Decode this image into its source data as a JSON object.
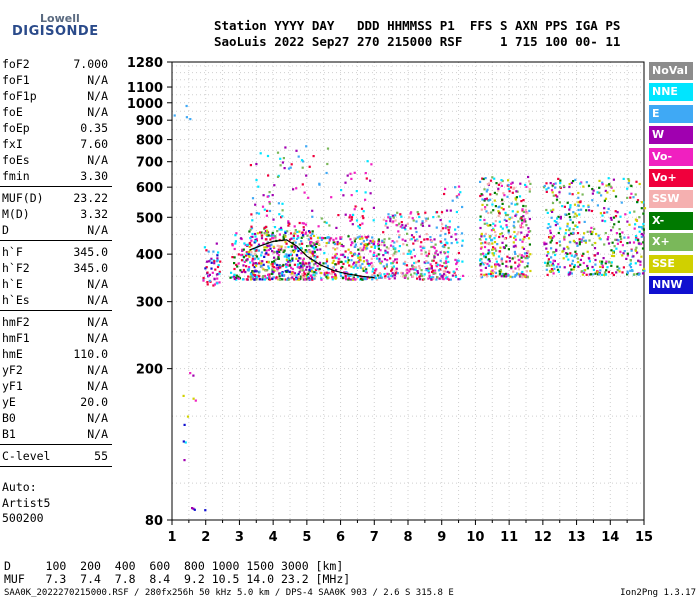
{
  "logo": {
    "line1": "Lowell",
    "line2": "DIGISONDE"
  },
  "header": {
    "line1": "Station YYYY DAY   DDD HHMMSS P1  FFS S AXN PPS IGA PS",
    "line2": "SaoLuis 2022 Sep27 270 215000 RSF     1 715 100 00- 11"
  },
  "params": [
    {
      "name": "foF2",
      "value": "7.000"
    },
    {
      "name": "foF1",
      "value": "N/A"
    },
    {
      "name": "foF1p",
      "value": "N/A"
    },
    {
      "name": "foE",
      "value": "N/A"
    },
    {
      "name": "foEp",
      "value": "0.35"
    },
    {
      "name": "fxI",
      "value": "7.60"
    },
    {
      "name": "foEs",
      "value": "N/A"
    },
    {
      "name": "fmin",
      "value": "3.30"
    },
    {
      "sep": true
    },
    {
      "name": "MUF(D)",
      "value": "23.22"
    },
    {
      "name": "M(D)",
      "value": "3.32"
    },
    {
      "name": "D",
      "value": "N/A"
    },
    {
      "sep": true
    },
    {
      "name": "h`F",
      "value": "345.0"
    },
    {
      "name": "h`F2",
      "value": "345.0"
    },
    {
      "name": "h`E",
      "value": "N/A"
    },
    {
      "name": "h`Es",
      "value": "N/A"
    },
    {
      "sep": true
    },
    {
      "name": "hmF2",
      "value": "N/A"
    },
    {
      "name": "hmF1",
      "value": "N/A"
    },
    {
      "name": "hmE",
      "value": "110.0"
    },
    {
      "name": "yF2",
      "value": "N/A"
    },
    {
      "name": "yF1",
      "value": "N/A"
    },
    {
      "name": "yE",
      "value": "20.0"
    },
    {
      "name": "B0",
      "value": "N/A"
    },
    {
      "name": "B1",
      "value": "N/A"
    },
    {
      "sep": true
    },
    {
      "name": "C-level",
      "value": "55"
    },
    {
      "sep": true
    }
  ],
  "autoscaling": [
    "Auto:",
    "Artist5",
    "500200"
  ],
  "legend": [
    {
      "label": "NoVal",
      "color": "#8c8c8c"
    },
    {
      "label": "NNE",
      "color": "#00e5ff"
    },
    {
      "label": "E",
      "color": "#3fa9f5"
    },
    {
      "label": "W",
      "color": "#a000b0"
    },
    {
      "label": "Vo-",
      "color": "#f020c0"
    },
    {
      "label": "Vo+",
      "color": "#f0003c"
    },
    {
      "label": "SSW",
      "color": "#f5b0b0"
    },
    {
      "label": "X-",
      "color": "#007a00"
    },
    {
      "label": "X+",
      "color": "#7ab85a"
    },
    {
      "label": "SSE",
      "color": "#d0d000"
    },
    {
      "label": "NNW",
      "color": "#1010d0"
    }
  ],
  "muf_table": {
    "line1": "D     100  200  400  600  800 1000 1500 3000 [km]",
    "line2": "MUF   7.3  7.4  7.8  8.4  9.2 10.5 14.0 23.2 [MHz]"
  },
  "footer": {
    "left": "SAA0K_2022270215000.RSF / 280fx256h 50 kHz 5.0 km / DPS-4 SAA0K 903 / 2.6 S 315.8 E",
    "right": "Ion2Png 1.3.17"
  },
  "chart_data": {
    "type": "scatter",
    "title": "",
    "xlabel": "",
    "ylabel": "",
    "xlim": [
      1,
      15
    ],
    "ylim": [
      80,
      1280
    ],
    "xticks": [
      "1",
      "2",
      "3",
      "4",
      "5",
      "6",
      "7",
      "8",
      "9",
      "10",
      "11",
      "12",
      "13",
      "14",
      "15"
    ],
    "yticks": [
      "80",
      "200",
      "300",
      "400",
      "500",
      "600",
      "700",
      "800",
      "900",
      "1000",
      "1100",
      "1280"
    ],
    "ytick_values": [
      80,
      200,
      300,
      400,
      500,
      600,
      700,
      800,
      900,
      1000,
      1100,
      1280
    ],
    "y_scale": "logarithmic",
    "grid": true,
    "trace": {
      "x": [
        3.3,
        3.6,
        4.0,
        4.4,
        4.7,
        5.0,
        5.4,
        5.8,
        6.2,
        6.6,
        7.0
      ],
      "y": [
        410,
        420,
        432,
        436,
        420,
        395,
        375,
        362,
        355,
        350,
        347
      ]
    },
    "clusters": [
      {
        "x": [
          1.9,
          2.4
        ],
        "y": [
          330,
          430
        ],
        "n": 50,
        "colors": [
          1,
          2,
          3,
          4,
          5,
          10
        ]
      },
      {
        "x": [
          2.7,
          3.2
        ],
        "y": [
          345,
          460
        ],
        "n": 60,
        "colors": [
          3,
          4,
          5,
          1,
          7
        ]
      },
      {
        "x": [
          3.2,
          5.2
        ],
        "y": [
          345,
          470
        ],
        "n": 500,
        "colors": [
          4,
          5,
          3,
          1,
          2,
          7,
          6,
          8,
          9,
          10
        ]
      },
      {
        "x": [
          5.0,
          7.2
        ],
        "y": [
          345,
          450
        ],
        "n": 350,
        "colors": [
          4,
          5,
          3,
          1,
          2,
          7,
          6,
          9
        ]
      },
      {
        "x": [
          7.2,
          9.2
        ],
        "y": [
          345,
          520
        ],
        "n": 320,
        "colors": [
          4,
          5,
          3,
          1,
          2,
          6,
          8
        ]
      },
      {
        "x": [
          9.0,
          9.6
        ],
        "y": [
          345,
          610
        ],
        "n": 60,
        "colors": [
          4,
          5,
          3,
          1,
          2
        ]
      },
      {
        "x": [
          10.1,
          11.6
        ],
        "y": [
          350,
          650
        ],
        "n": 380,
        "colors": [
          4,
          5,
          3,
          1,
          2,
          7,
          6,
          8,
          9
        ]
      },
      {
        "x": [
          12.0,
          15.0
        ],
        "y": [
          355,
          640
        ],
        "n": 480,
        "colors": [
          1,
          2,
          3,
          4,
          5,
          8,
          9,
          7
        ]
      },
      {
        "x": [
          3.3,
          5.7
        ],
        "y": [
          470,
          780
        ],
        "n": 90,
        "colors": [
          3,
          4,
          5,
          1,
          2,
          8
        ]
      },
      {
        "x": [
          5.8,
          7.0
        ],
        "y": [
          470,
          720
        ],
        "n": 40,
        "colors": [
          4,
          5,
          3,
          1
        ]
      },
      {
        "x": [
          1.3,
          2.0
        ],
        "y": [
          85,
          220
        ],
        "n": 14,
        "colors": [
          1,
          9,
          10,
          3,
          4
        ]
      },
      {
        "x": [
          1.0,
          1.6
        ],
        "y": [
          900,
          1000
        ],
        "n": 4,
        "colors": [
          1,
          2
        ]
      }
    ]
  }
}
